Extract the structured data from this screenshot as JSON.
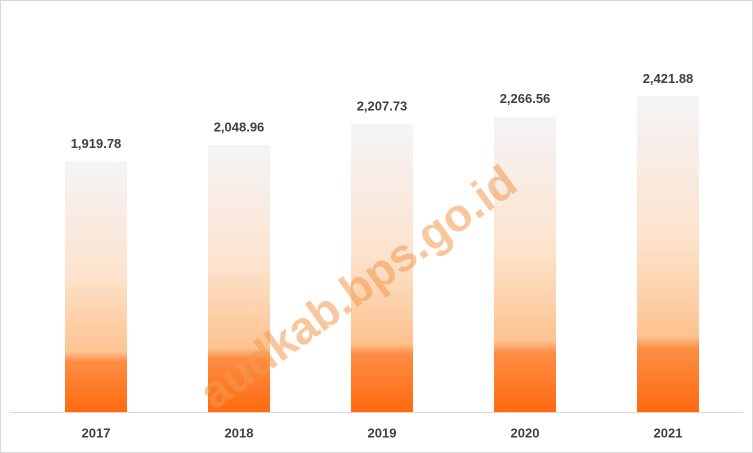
{
  "chart_data": {
    "type": "bar",
    "categories": [
      "2017",
      "2018",
      "2019",
      "2020",
      "2021"
    ],
    "values": [
      1919.78,
      2048.96,
      2207.73,
      2266.56,
      2421.88
    ],
    "value_labels": [
      "1,919.78",
      "2,048.96",
      "2,207.73",
      "2,266.56",
      "2,421.88"
    ],
    "color": "#ff6a10",
    "ylim": [
      0,
      3000
    ],
    "grid": false,
    "watermark": "audkab.bps.go.id"
  }
}
